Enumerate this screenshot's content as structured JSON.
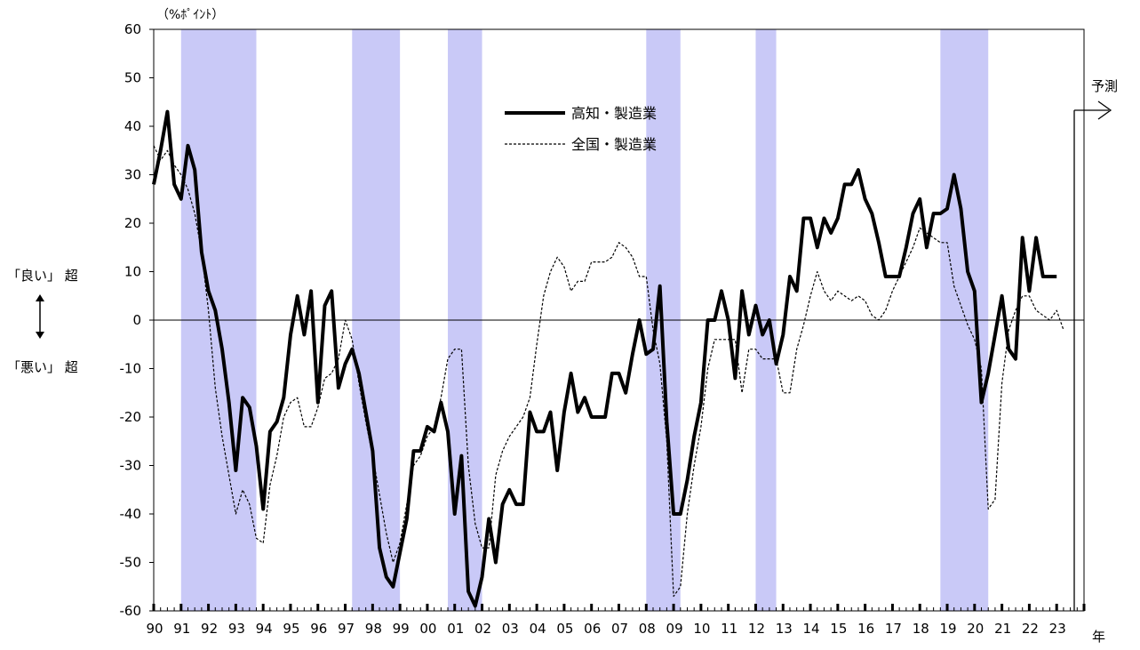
{
  "labels": {
    "unit": "（%ﾎﾟｲﾝﾄ）",
    "good": "「良い」 超",
    "bad": "「悪い」 超",
    "forecast": "予測",
    "year_suffix": "年"
  },
  "chart_data": {
    "type": "line",
    "ylim": [
      -60,
      60
    ],
    "yticks": [
      60,
      50,
      40,
      30,
      20,
      10,
      0,
      -10,
      -20,
      -30,
      -40,
      -50,
      -60
    ],
    "xlim": [
      1990.0,
      2024.0
    ],
    "xtick_labels": [
      "90",
      "91",
      "92",
      "93",
      "94",
      "95",
      "96",
      "97",
      "98",
      "99",
      "00",
      "01",
      "02",
      "03",
      "04",
      "05",
      "06",
      "07",
      "08",
      "09",
      "10",
      "11",
      "12",
      "13",
      "14",
      "15",
      "16",
      "17",
      "18",
      "19",
      "20",
      "21",
      "22",
      "23"
    ],
    "recession_periods": [
      [
        1991.0,
        1993.75
      ],
      [
        1997.25,
        1999.0
      ],
      [
        2000.75,
        2002.0
      ],
      [
        2008.0,
        2009.25
      ],
      [
        2012.0,
        2012.75
      ],
      [
        2018.75,
        2020.5
      ]
    ],
    "forecast_start": 2023.0,
    "colors": {
      "recession": "#c9c9f7",
      "series": "#000000"
    },
    "series": [
      {
        "name": "高知・製造業",
        "style": "solid",
        "x0": 1990.0,
        "step": 0.25,
        "values": [
          28,
          35,
          43,
          28,
          25,
          36,
          31,
          14,
          6,
          2,
          -6,
          -17,
          -31,
          -16,
          -18,
          -26,
          -39,
          -23,
          -21,
          -16,
          -3,
          5,
          -3,
          6,
          -17,
          3,
          6,
          -14,
          -9,
          -6,
          -11,
          -19,
          -27,
          -47,
          -53,
          -55,
          -48,
          -41,
          -27,
          -27,
          -22,
          -23,
          -17,
          -23,
          -40,
          -28,
          -56,
          -59,
          -53,
          -41,
          -50,
          -38,
          -35,
          -38,
          -38,
          -19,
          -23,
          -23,
          -19,
          -31,
          -19,
          -11,
          -19,
          -16,
          -20,
          -20,
          -20,
          -11,
          -11,
          -15,
          -7,
          0,
          -7,
          -6,
          7,
          -21,
          -40,
          -40,
          -33,
          -24,
          -17,
          0,
          0,
          6,
          0,
          -12,
          6,
          -3,
          3,
          -3,
          0,
          -9,
          -3,
          9,
          6,
          21,
          21,
          15,
          21,
          18,
          21,
          28,
          28,
          31,
          25,
          22,
          16,
          9,
          9,
          9,
          15,
          22,
          25,
          15,
          22,
          22,
          23,
          30,
          23,
          10,
          6,
          -17,
          -11,
          -3,
          5,
          -6,
          -8,
          17,
          6,
          17,
          9,
          9,
          9
        ]
      },
      {
        "name": "全国・製造業",
        "style": "dashed",
        "x0": 1990.0,
        "step": 0.25,
        "values": [
          36,
          33,
          35,
          32,
          30,
          27,
          22,
          14,
          2,
          -14,
          -24,
          -32,
          -40,
          -35,
          -38,
          -45,
          -46,
          -34,
          -28,
          -20,
          -17,
          -16,
          -22,
          -22,
          -18,
          -12,
          -11,
          -8,
          0,
          -4,
          -13,
          -21,
          -28,
          -36,
          -44,
          -50,
          -46,
          -38,
          -30,
          -28,
          -24,
          -22,
          -16,
          -8,
          -6,
          -6,
          -30,
          -42,
          -47,
          -47,
          -32,
          -27,
          -24,
          -22,
          -20,
          -16,
          -5,
          5,
          10,
          13,
          11,
          6,
          8,
          8,
          12,
          12,
          12,
          13,
          16,
          15,
          13,
          9,
          9,
          -2,
          -9,
          -25,
          -57,
          -55,
          -40,
          -30,
          -22,
          -10,
          -4,
          -4,
          -4,
          -4,
          -15,
          -6,
          -6,
          -8,
          -8,
          -8,
          -15,
          -15,
          -6,
          -1,
          5,
          10,
          6,
          4,
          6,
          5,
          4,
          5,
          4,
          1,
          0,
          2,
          6,
          9,
          12,
          15,
          19,
          18,
          17,
          16,
          16,
          7,
          3,
          -1,
          -4,
          -10,
          -39,
          -37,
          -13,
          -2,
          2,
          5,
          5,
          2,
          1,
          0,
          2,
          -2
        ]
      }
    ]
  }
}
